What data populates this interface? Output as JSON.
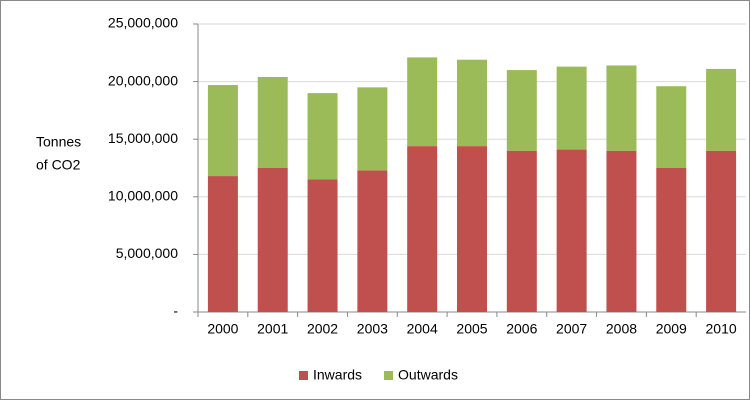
{
  "chart_data": {
    "type": "stacked_bar",
    "ylabel": [
      "Tonnes",
      "of CO2"
    ],
    "categories": [
      "2000",
      "2001",
      "2002",
      "2003",
      "2004",
      "2005",
      "2006",
      "2007",
      "2008",
      "2009",
      "2010"
    ],
    "series": [
      {
        "name": "Inwards",
        "color": "#c0504d",
        "values": [
          11800000,
          12500000,
          11500000,
          12300000,
          14400000,
          14400000,
          14000000,
          14100000,
          14000000,
          12500000,
          14000000
        ]
      },
      {
        "name": "Outwards",
        "color": "#9bbb59",
        "values": [
          7900000,
          7900000,
          7500000,
          7200000,
          7700000,
          7500000,
          7000000,
          7200000,
          7400000,
          7100000,
          7100000
        ]
      }
    ],
    "ylim": [
      0,
      25000000
    ],
    "yticks": [
      {
        "value": 0,
        "label": "-"
      },
      {
        "value": 5000000,
        "label": "5,000,000"
      },
      {
        "value": 10000000,
        "label": "10,000,000"
      },
      {
        "value": 15000000,
        "label": "15,000,000"
      },
      {
        "value": 20000000,
        "label": "20,000,000"
      },
      {
        "value": 25000000,
        "label": "25,000,000"
      }
    ],
    "grid": true,
    "legend": "bottom"
  }
}
